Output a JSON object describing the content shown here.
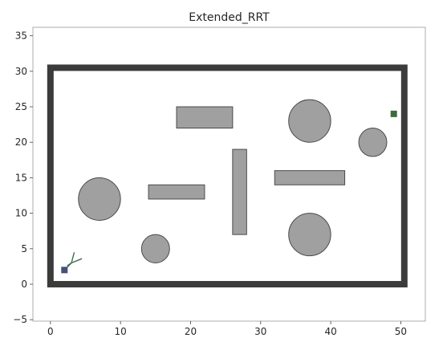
{
  "chart_data": {
    "type": "scatter",
    "title": "Extended_RRT",
    "xlabel": "",
    "ylabel": "",
    "xlim": [
      -2.5,
      53.5
    ],
    "ylim": [
      -5.2,
      36.2
    ],
    "xticks": [
      0,
      10,
      20,
      30,
      40,
      50
    ],
    "yticks": [
      -5,
      0,
      5,
      10,
      15,
      20,
      25,
      30,
      35
    ],
    "grid": false,
    "colors": {
      "boundary": "#3b3b3b",
      "obstacle_fill": "#a0a0a0",
      "obstacle_edge": "#4a4a4a",
      "start": "#46507a",
      "goal": "#3e6b3e",
      "tree": "#3e6b50"
    },
    "boundary": {
      "x0": 0,
      "y0": 0,
      "x1": 50.5,
      "y1": 30.5
    },
    "rectangles": [
      {
        "x": 18,
        "y": 22,
        "w": 8,
        "h": 3
      },
      {
        "x": 26,
        "y": 7,
        "w": 2,
        "h": 12
      },
      {
        "x": 32,
        "y": 14,
        "w": 10,
        "h": 2
      },
      {
        "x": 14,
        "y": 12,
        "w": 8,
        "h": 2
      }
    ],
    "circles": [
      {
        "x": 37,
        "y": 23,
        "r": 3
      },
      {
        "x": 46,
        "y": 20,
        "r": 2
      },
      {
        "x": 7,
        "y": 12,
        "r": 3
      },
      {
        "x": 37,
        "y": 7,
        "r": 3
      },
      {
        "x": 15,
        "y": 5,
        "r": 2
      }
    ],
    "start": {
      "x": 2,
      "y": 2
    },
    "goal": {
      "x": 49,
      "y": 24
    },
    "tree_edges": [
      [
        [
          2,
          2
        ],
        [
          3.0,
          3.0
        ]
      ],
      [
        [
          3.0,
          3.0
        ],
        [
          3.4,
          4.5
        ]
      ],
      [
        [
          3.0,
          3.0
        ],
        [
          4.5,
          3.6
        ]
      ],
      [
        [
          3.0,
          3.0
        ],
        [
          2.4,
          2.6
        ]
      ]
    ]
  }
}
